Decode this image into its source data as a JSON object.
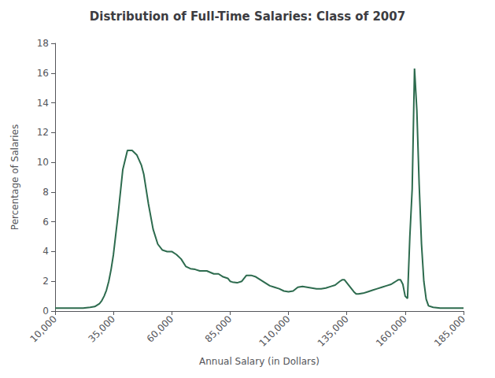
{
  "chart_data": {
    "type": "line",
    "title": "Distribution of Full-Time Salaries: Class of 2007",
    "xlabel": "Annual Salary (in Dollars)",
    "ylabel": "Percentage of Salaries",
    "color": "#2d6b4e",
    "grid": false,
    "xlim": [
      10000,
      185000
    ],
    "ylim": [
      0,
      18
    ],
    "xticks": [
      {
        "value": 10000,
        "label": "10,000"
      },
      {
        "value": 35000,
        "label": "35,000"
      },
      {
        "value": 60000,
        "label": "60,000"
      },
      {
        "value": 85000,
        "label": "85,000"
      },
      {
        "value": 110000,
        "label": "110,000"
      },
      {
        "value": 135000,
        "label": "135,000"
      },
      {
        "value": 160000,
        "label": "160,000"
      },
      {
        "value": 185000,
        "label": "185,000"
      }
    ],
    "yticks": [
      0,
      2,
      4,
      6,
      8,
      10,
      12,
      14,
      16,
      18
    ],
    "x": [
      10000,
      13000,
      16000,
      19000,
      22000,
      25000,
      27000,
      29000,
      30000,
      31000,
      32000,
      33000,
      34000,
      35000,
      37000,
      39000,
      41000,
      43000,
      45000,
      47000,
      48000,
      49000,
      50000,
      52000,
      54000,
      56000,
      58000,
      60000,
      62000,
      64000,
      66000,
      68000,
      70000,
      72000,
      75000,
      78000,
      80000,
      82000,
      84000,
      85000,
      86000,
      88000,
      90000,
      92000,
      94000,
      96000,
      98000,
      100000,
      102000,
      104000,
      106000,
      108000,
      110000,
      112000,
      114000,
      116000,
      118000,
      120000,
      122000,
      124000,
      126000,
      128000,
      130000,
      132000,
      133000,
      134000,
      135000,
      136000,
      137000,
      138000,
      139000,
      140000,
      142000,
      144000,
      146000,
      148000,
      150000,
      152000,
      154000,
      155000,
      156000,
      157000,
      158000,
      159000,
      160000,
      161000,
      162000,
      163000,
      164000,
      165000,
      166000,
      167000,
      168000,
      169000,
      170000,
      172000,
      175000,
      178000,
      181000,
      185000
    ],
    "values": [
      0.2,
      0.2,
      0.2,
      0.2,
      0.2,
      0.25,
      0.3,
      0.5,
      0.7,
      1.0,
      1.4,
      2.0,
      2.8,
      3.8,
      6.5,
      9.5,
      10.8,
      10.8,
      10.5,
      9.8,
      9.2,
      8.2,
      7.2,
      5.5,
      4.5,
      4.1,
      4.0,
      4.0,
      3.8,
      3.5,
      3.0,
      2.85,
      2.8,
      2.7,
      2.7,
      2.5,
      2.5,
      2.3,
      2.2,
      2.0,
      1.95,
      1.9,
      2.0,
      2.4,
      2.4,
      2.3,
      2.1,
      1.9,
      1.7,
      1.6,
      1.5,
      1.35,
      1.3,
      1.35,
      1.6,
      1.65,
      1.6,
      1.55,
      1.5,
      1.5,
      1.55,
      1.65,
      1.75,
      2.0,
      2.1,
      2.1,
      1.9,
      1.7,
      1.5,
      1.3,
      1.15,
      1.15,
      1.2,
      1.3,
      1.4,
      1.5,
      1.6,
      1.7,
      1.8,
      1.9,
      2.0,
      2.1,
      2.1,
      1.8,
      1.0,
      0.85,
      5.0,
      8.2,
      16.3,
      13.5,
      8.5,
      4.5,
      2.0,
      0.8,
      0.35,
      0.25,
      0.2,
      0.2,
      0.2,
      0.2
    ]
  }
}
